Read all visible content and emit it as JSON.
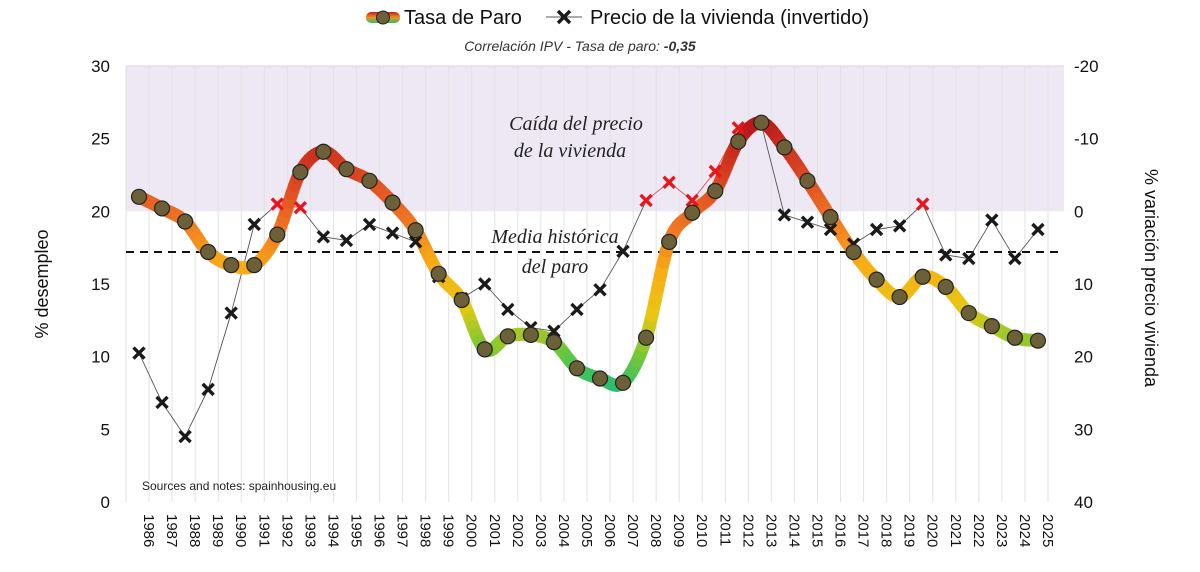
{
  "chart_data": {
    "type": "line",
    "legend": {
      "position": "top",
      "unemployment_label": "Tasa de Paro",
      "price_label": "Precio de la vivienda (invertido)"
    },
    "subtitle_prefix": "Correlación IPV - Tasa de paro: ",
    "correlation_value": "-0,35",
    "annotations": {
      "zone_line1": "Caída del precio",
      "zone_line2": "de la vivienda",
      "mean_line1": "Media histórica",
      "mean_line2": "del paro"
    },
    "source": "Sources and notes: spainhousing.eu",
    "ylabel_left": "% desempleo",
    "ylabel_right": "% variación precio vivienda",
    "ylim_left": [
      0,
      30
    ],
    "yticks_left": [
      "0",
      "5",
      "10",
      "15",
      "20",
      "25",
      "30"
    ],
    "ylim_right": [
      40,
      -20
    ],
    "yticks_right": [
      "40",
      "30",
      "20",
      "10",
      "0",
      "-10",
      "-20"
    ],
    "shaded_region_left": [
      20,
      30
    ],
    "mean_unemployment": 17.2,
    "categories": [
      "1986",
      "1987",
      "1988",
      "1989",
      "1990",
      "1991",
      "1992",
      "1993",
      "1994",
      "1995",
      "1996",
      "1997",
      "1998",
      "1999",
      "2000",
      "2001",
      "2002",
      "2003",
      "2004",
      "2005",
      "2006",
      "2007",
      "2008",
      "2009",
      "2010",
      "2011",
      "2012",
      "2013",
      "2014",
      "2015",
      "2016",
      "2017",
      "2018",
      "2019",
      "2020",
      "2021",
      "2022",
      "2023",
      "2024",
      "2025"
    ],
    "series": [
      {
        "name": "Tasa de Paro",
        "axis": "left",
        "values": [
          21.0,
          20.2,
          19.3,
          17.2,
          16.3,
          16.3,
          18.4,
          22.7,
          24.1,
          22.9,
          22.1,
          20.6,
          18.7,
          15.7,
          13.9,
          10.5,
          11.4,
          11.5,
          11.0,
          9.2,
          8.5,
          8.2,
          11.3,
          17.9,
          19.9,
          21.4,
          24.8,
          26.1,
          24.4,
          22.1,
          19.6,
          17.2,
          15.3,
          14.1,
          15.5,
          14.8,
          13.0,
          12.1,
          11.3,
          11.1
        ]
      },
      {
        "name": "Precio de la vivienda (invertido)",
        "axis": "right",
        "values": [
          19.5,
          26.3,
          31.0,
          24.5,
          14.0,
          1.8,
          -1.0,
          -0.5,
          3.5,
          4.0,
          1.8,
          3.0,
          4.2,
          9.0,
          12.0,
          10.0,
          13.5,
          16.0,
          16.5,
          13.5,
          10.8,
          5.5,
          -1.5,
          -4.0,
          -1.5,
          -5.5,
          -11.5,
          -12.0,
          0.5,
          1.5,
          2.5,
          4.5,
          2.5,
          2.0,
          -1.0,
          6.0,
          6.5,
          1.2,
          6.5,
          2.5
        ]
      }
    ],
    "colors": {
      "shade": "#eee8f5",
      "grid": "#e2e2e2",
      "marker_fill": "#6b6037",
      "price_marker": "#1a1a1a",
      "price_marker_highlight": "#e8151a",
      "price_line": "#555555",
      "price_line_highlight": "#e05050"
    }
  }
}
